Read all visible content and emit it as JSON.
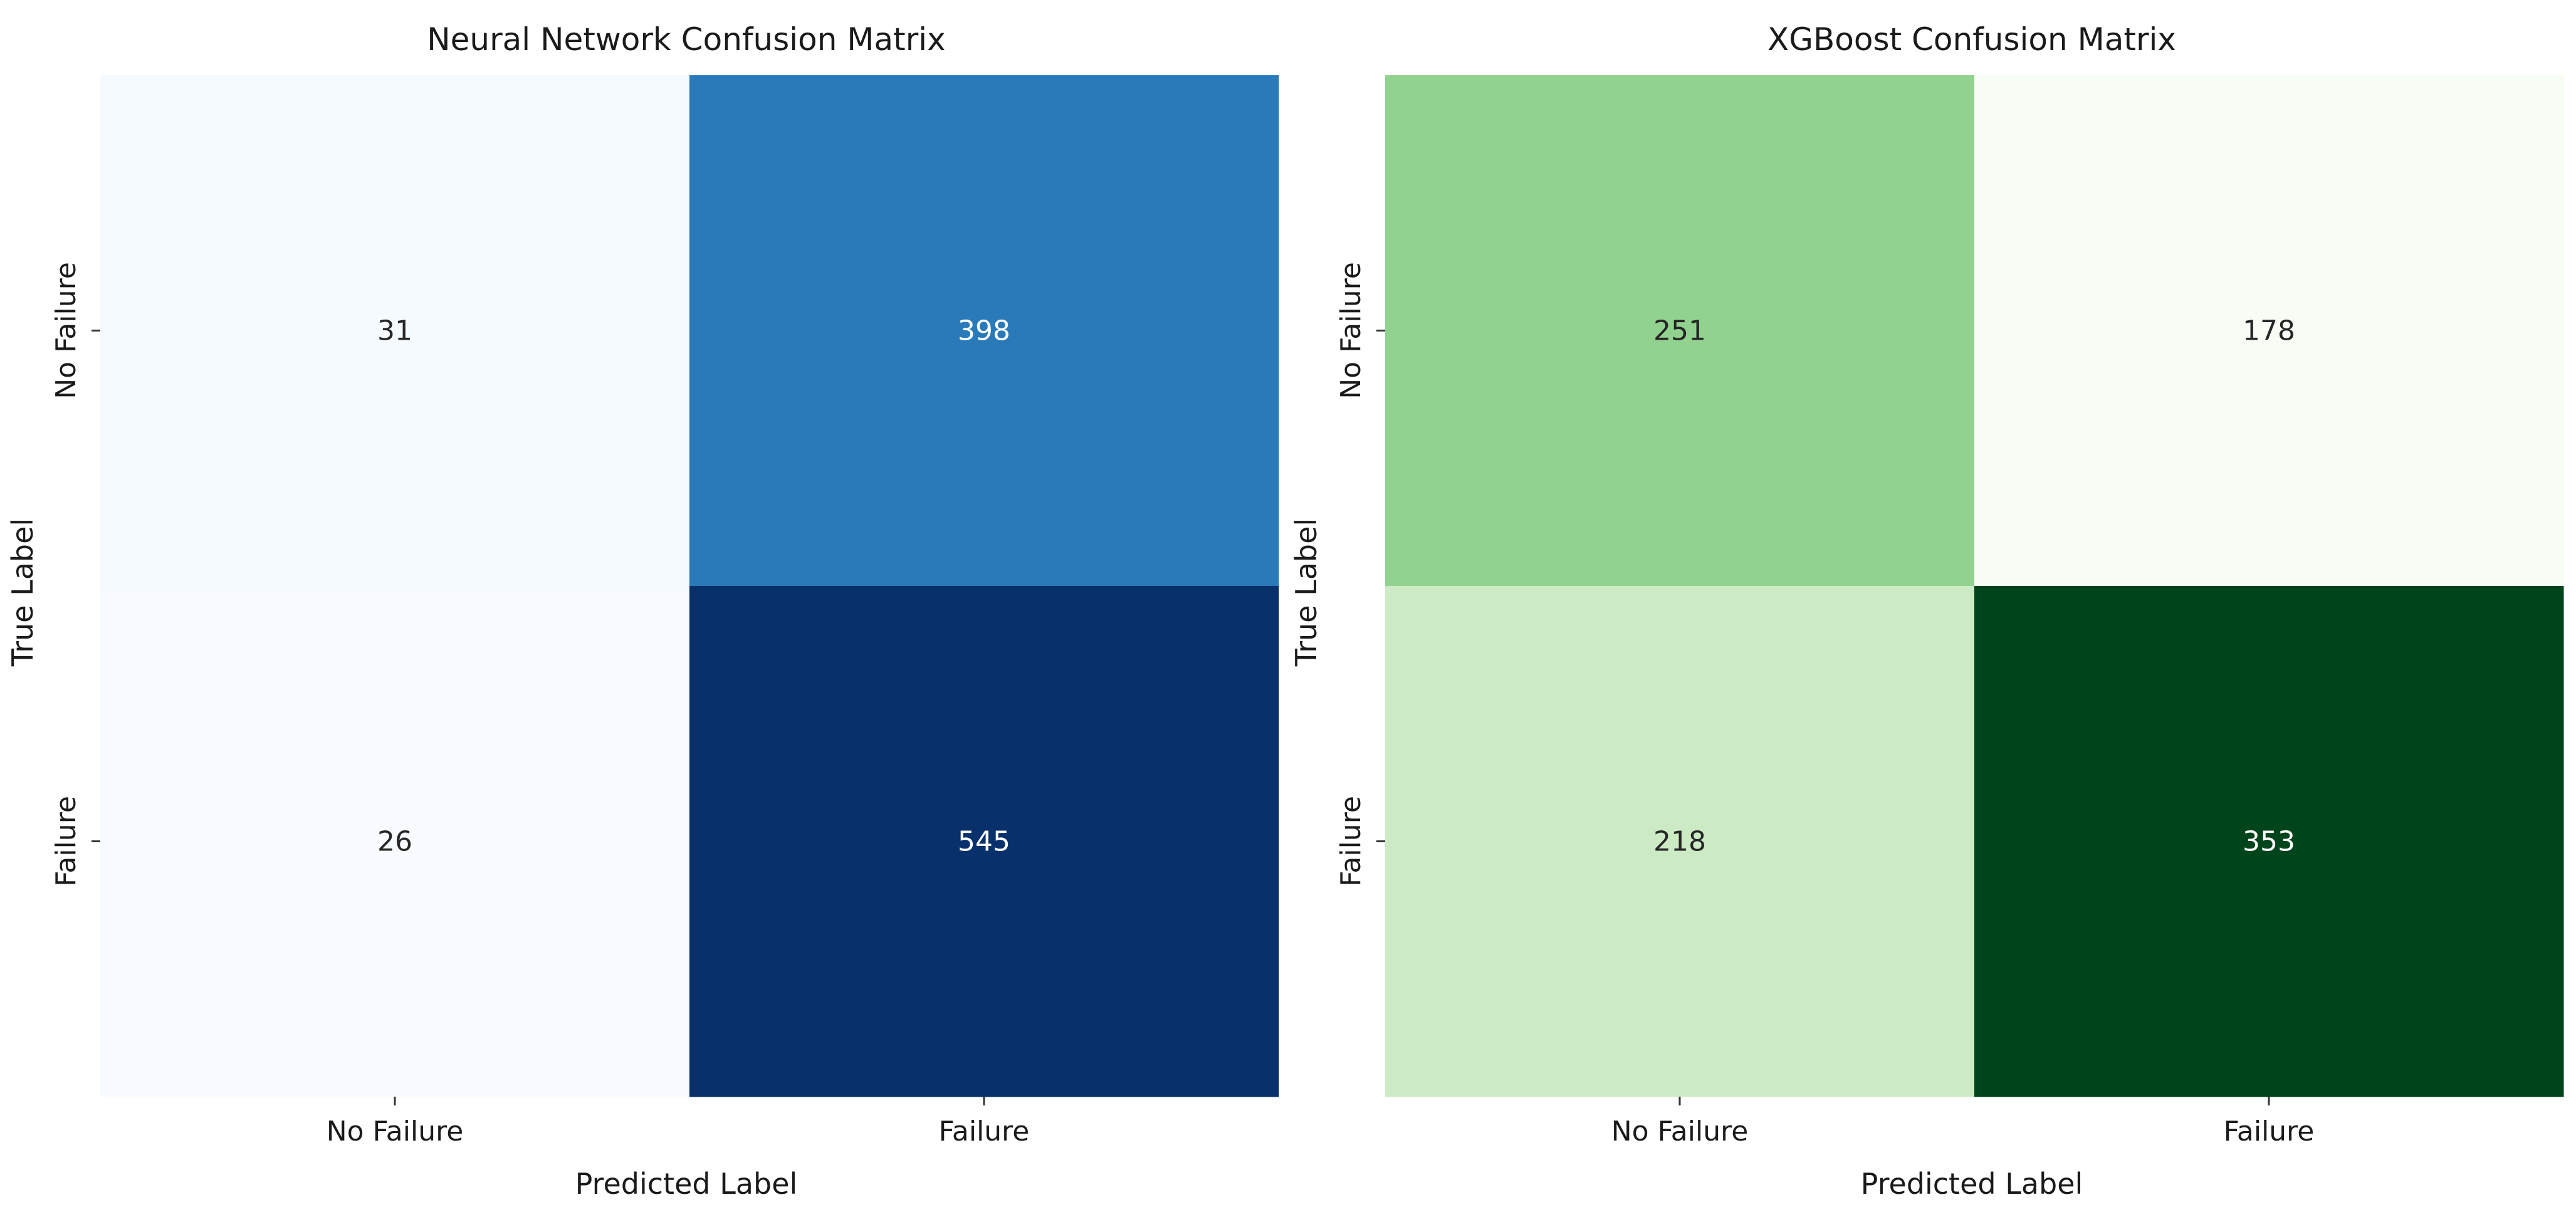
{
  "chart_data": [
    {
      "type": "heatmap",
      "title": "Neural Network Confusion Matrix",
      "xlabel": "Predicted Label",
      "ylabel": "True Label",
      "x_categories": [
        "No Failure",
        "Failure"
      ],
      "y_categories": [
        "No Failure",
        "Failure"
      ],
      "values": [
        [
          31,
          398
        ],
        [
          26,
          545
        ]
      ],
      "colormap": "Blues",
      "color_range": [
        "#f7fbff",
        "#08306b"
      ]
    },
    {
      "type": "heatmap",
      "title": "XGBoost Confusion Matrix",
      "xlabel": "Predicted Label",
      "ylabel": "True Label",
      "x_categories": [
        "No Failure",
        "Failure"
      ],
      "y_categories": [
        "No Failure",
        "Failure"
      ],
      "values": [
        [
          251,
          178
        ],
        [
          218,
          353
        ]
      ],
      "colormap": "Greens",
      "color_range": [
        "#f7fcf5",
        "#00441b"
      ]
    }
  ]
}
